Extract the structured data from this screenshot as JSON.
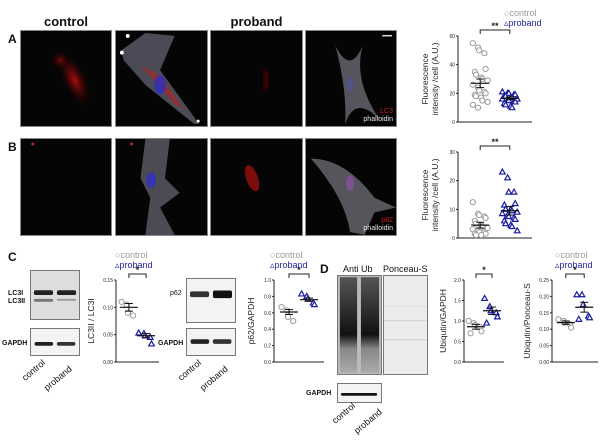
{
  "figure": {
    "panel_letters": [
      "A",
      "B",
      "C",
      "D"
    ],
    "column_titles": {
      "control": "control",
      "proband": "proband"
    },
    "panel_a": {
      "stain_1": "LC3",
      "stain_2": "phalloidin"
    },
    "panel_b": {
      "stain_1": "p62",
      "stain_2": "phalloidin"
    },
    "legend": {
      "control": "control",
      "proband": "proband"
    },
    "panel_c": {
      "blot1": {
        "bands": [
          "LC3I",
          "LC3II"
        ],
        "loading": "GAPDH",
        "lanes": [
          "control",
          "proband"
        ]
      },
      "blot2": {
        "bands": [
          "p62"
        ],
        "loading": "GAPDH",
        "lanes": [
          "control",
          "proband"
        ]
      }
    },
    "panel_d": {
      "blot_titles": [
        "Anti Ub",
        "Ponceau-S"
      ],
      "loading": "GAPDH",
      "lanes": [
        "control",
        "proband"
      ]
    },
    "significance": {
      "double": "**",
      "single": "*"
    }
  },
  "colors": {
    "control": "#9a9a9a",
    "proband": "#1a1aa0",
    "red_stain": "#d01818"
  },
  "chart_data": [
    {
      "id": "A",
      "type": "scatter",
      "title": "",
      "ylabel": "Fluorescence intensity /cell (A.U.)",
      "ylabel_lines": [
        "Fluorescence",
        "intensity /cell (A.U.)"
      ],
      "ylim": [
        0,
        60
      ],
      "yticks": [
        "0",
        "20",
        "40",
        "60"
      ],
      "significance": "**",
      "series": [
        {
          "name": "control",
          "marker": "circle",
          "mean": 27,
          "sem": 3,
          "values": [
            55,
            52,
            50,
            48,
            37,
            35,
            33,
            31,
            30,
            29,
            26,
            24,
            22,
            21,
            20,
            19,
            18,
            17,
            15,
            14,
            12,
            10
          ]
        },
        {
          "name": "proband",
          "marker": "triangle",
          "mean": 16.5,
          "sem": 1,
          "values": [
            21,
            20,
            20,
            19,
            19,
            18,
            18,
            17,
            17,
            16,
            16,
            15,
            15,
            14,
            14,
            13,
            12,
            11,
            10
          ]
        }
      ]
    },
    {
      "id": "B",
      "type": "scatter",
      "ylabel": "Fluorescence intensity /cell (A.U.)",
      "ylabel_lines": [
        "Fluorescence",
        "intensity /cell (A.U.)"
      ],
      "ylim": [
        0,
        30
      ],
      "yticks": [
        "0",
        "10",
        "20",
        "30"
      ],
      "significance": "**",
      "series": [
        {
          "name": "control",
          "marker": "circle",
          "mean": 4.5,
          "sem": 1,
          "values": [
            12.5,
            8.5,
            8,
            7.5,
            7,
            6,
            5,
            4.5,
            4,
            3.5,
            3,
            2.5,
            2,
            2,
            1.5,
            1.5,
            1,
            1
          ]
        },
        {
          "name": "proband",
          "marker": "triangle",
          "mean": 9.5,
          "sem": 1.5,
          "values": [
            23,
            21,
            16,
            16,
            12,
            11.5,
            10,
            10,
            9.5,
            9,
            8.5,
            8,
            7.5,
            7,
            6.5,
            6,
            5,
            4.5,
            4,
            2.5
          ]
        }
      ]
    },
    {
      "id": "C1",
      "type": "scatter",
      "ylabel": "LC3II / LC3I",
      "ylim": [
        0,
        0.15
      ],
      "yticks": [
        "0.00",
        "0.05",
        "0.10",
        "0.15"
      ],
      "significance": "*",
      "series": [
        {
          "name": "control",
          "marker": "circle",
          "mean": 0.1,
          "sem": 0.007,
          "values": [
            0.11,
            0.105,
            0.09,
            0.085
          ]
        },
        {
          "name": "proband",
          "marker": "triangle",
          "mean": 0.048,
          "sem": 0.004,
          "values": [
            0.053,
            0.052,
            0.048,
            0.045,
            0.033
          ]
        }
      ]
    },
    {
      "id": "C2",
      "type": "scatter",
      "ylabel": "p62/GAPDH",
      "ylim": [
        0,
        1.0
      ],
      "yticks": [
        "0.0",
        "0.2",
        "0.4",
        "0.6",
        "0.8",
        "1.0"
      ],
      "significance": "*",
      "series": [
        {
          "name": "control",
          "marker": "circle",
          "mean": 0.61,
          "sem": 0.03,
          "values": [
            0.67,
            0.63,
            0.55,
            0.5
          ]
        },
        {
          "name": "proband",
          "marker": "triangle",
          "mean": 0.76,
          "sem": 0.02,
          "values": [
            0.83,
            0.8,
            0.77,
            0.72,
            0.7
          ]
        }
      ]
    },
    {
      "id": "D1",
      "type": "scatter",
      "ylabel": "Ubiqutin/GAPDH",
      "ylim": [
        0,
        2.0
      ],
      "yticks": [
        "0.0",
        "0.5",
        "1.0",
        "1.5",
        "2.0"
      ],
      "significance": "*",
      "series": [
        {
          "name": "control",
          "marker": "circle",
          "mean": 0.86,
          "sem": 0.06,
          "values": [
            1.0,
            0.95,
            0.9,
            0.85,
            0.75,
            0.7
          ]
        },
        {
          "name": "proband",
          "marker": "triangle",
          "mean": 1.25,
          "sem": 0.09,
          "values": [
            1.55,
            1.35,
            1.25,
            1.2,
            1.1,
            0.95
          ]
        }
      ]
    },
    {
      "id": "D2",
      "type": "scatter",
      "ylabel": "Ubiqutin/Ponceau-S",
      "ylim": [
        0,
        0.25
      ],
      "yticks": [
        "0.00",
        "0.05",
        "0.10",
        "0.15",
        "0.20",
        "0.25"
      ],
      "significance": "*",
      "series": [
        {
          "name": "control",
          "marker": "circle",
          "mean": 0.12,
          "sem": 0.005,
          "values": [
            0.13,
            0.125,
            0.12,
            0.115,
            0.105
          ]
        },
        {
          "name": "proband",
          "marker": "triangle",
          "mean": 0.167,
          "sem": 0.015,
          "values": [
            0.205,
            0.205,
            0.175,
            0.14,
            0.135,
            0.13
          ]
        }
      ]
    }
  ]
}
